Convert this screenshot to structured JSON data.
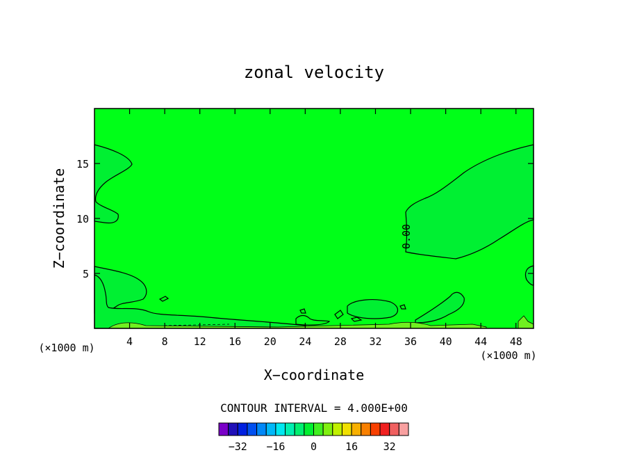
{
  "chart_data": {
    "type": "contour",
    "title": "zonal velocity",
    "xlabel": "X−coordinate",
    "ylabel": "Z−coordinate",
    "x_unit_label": "(×1000 m)",
    "x_unit_label_right": "(×1000 m)",
    "x_ticks": [
      4,
      8,
      12,
      16,
      20,
      24,
      28,
      32,
      36,
      40,
      44,
      48
    ],
    "y_ticks": [
      5,
      10,
      15
    ],
    "xlim": [
      0,
      50
    ],
    "ylim": [
      0,
      20
    ],
    "contour_interval_text": "CONTOUR INTERVAL = 4.000E+00",
    "contour_labels": [
      "0.00"
    ],
    "background_color": "#00ff18",
    "colorbar": {
      "tick_labels": [
        "−32",
        "−16",
        "0",
        "16",
        "32"
      ],
      "tick_values": [
        -32,
        -16,
        0,
        16,
        32
      ],
      "colors": [
        "#7a00c8",
        "#2010b8",
        "#0020e0",
        "#0050f0",
        "#0088f8",
        "#00b8f8",
        "#00e8f0",
        "#00f0b0",
        "#00f070",
        "#00f030",
        "#40f020",
        "#80f010",
        "#c0f000",
        "#f0e000",
        "#f8b000",
        "#f88000",
        "#f84000",
        "#f02020",
        "#f06060",
        "#f8a0a0"
      ]
    }
  }
}
